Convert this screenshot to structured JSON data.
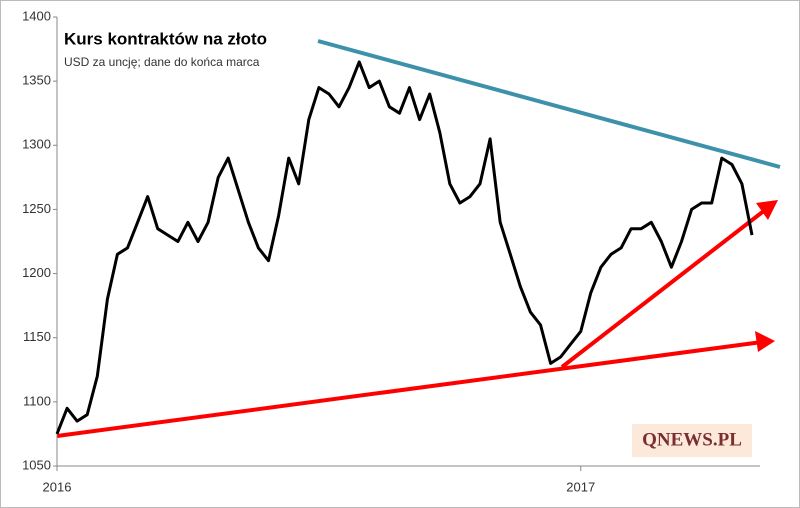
{
  "chart_data": {
    "type": "line",
    "title": "Kurs kontraktów na złoto",
    "subtitle": "USD za uncję; dane do końca marca",
    "watermark": "QNEWS.PL",
    "categories": [
      "2016",
      null,
      null,
      null,
      null,
      null,
      null,
      null,
      null,
      null,
      null,
      null,
      null,
      null,
      null,
      null,
      null,
      null,
      null,
      null,
      null,
      null,
      null,
      null,
      null,
      null,
      null,
      null,
      null,
      null,
      null,
      null,
      null,
      null,
      null,
      null,
      null,
      null,
      null,
      null,
      null,
      null,
      null,
      null,
      null,
      null,
      null,
      null,
      null,
      null,
      null,
      null,
      "2017",
      null,
      null,
      null,
      null,
      null,
      null,
      null,
      null,
      null,
      null,
      null,
      null,
      null,
      null,
      null,
      null,
      null
    ],
    "series": [
      {
        "name": "Kurs kontraktów na złoto",
        "color": "#000000",
        "values": [
          1075,
          1095,
          1085,
          1090,
          1120,
          1180,
          1215,
          1220,
          1240,
          1260,
          1235,
          1230,
          1225,
          1240,
          1225,
          1240,
          1275,
          1290,
          1265,
          1240,
          1220,
          1210,
          1245,
          1290,
          1270,
          1320,
          1345,
          1340,
          1330,
          1345,
          1365,
          1345,
          1350,
          1330,
          1325,
          1345,
          1320,
          1340,
          1310,
          1270,
          1255,
          1260,
          1270,
          1305,
          1240,
          1215,
          1190,
          1170,
          1160,
          1130,
          1135,
          1145,
          1155,
          1185,
          1205,
          1215,
          1220,
          1235,
          1235,
          1240,
          1225,
          1205,
          1225,
          1250,
          1255,
          1255,
          1290,
          1285,
          1270,
          1230
        ]
      }
    ],
    "ylim": [
      1050,
      1400
    ],
    "yticks": [
      1050,
      1100,
      1150,
      1200,
      1250,
      1300,
      1350,
      1400
    ],
    "grid": false
  }
}
